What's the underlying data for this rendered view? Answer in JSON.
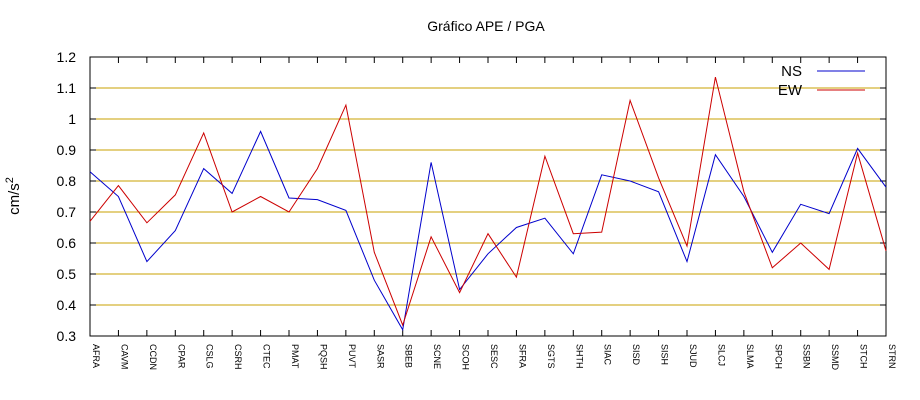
{
  "chart_data": {
    "type": "line",
    "title": "Gráfico  APE / PGA",
    "xlabel": "",
    "ylabel": "cm/s",
    "ylabel_exponent": "2",
    "ylim": [
      0.3,
      1.2
    ],
    "yticks": [
      "0.3",
      "0.4",
      "0.5",
      "0.6",
      "0.7",
      "0.8",
      "0.9",
      "1",
      "1.1",
      "1.2"
    ],
    "grid": "horizontal",
    "legend_position": "top-right",
    "categories": [
      "AFRA",
      "CAVM",
      "CCDN",
      "CPAR",
      "CSLG",
      "CSRH",
      "CTEC",
      "PMAT",
      "PQSH",
      "PUVT",
      "SASR",
      "SBEB",
      "SCNE",
      "SCOH",
      "SESC",
      "SFRA",
      "SGTS",
      "SHTH",
      "SIAC",
      "SISD",
      "SISH",
      "SJUD",
      "SLCJ",
      "SLMA",
      "SPCH",
      "SSBN",
      "SSMD",
      "STCH",
      "STRN"
    ],
    "series": [
      {
        "name": "NS",
        "color": "#0000cc",
        "values": [
          0.83,
          0.75,
          0.54,
          0.64,
          0.84,
          0.76,
          0.96,
          0.745,
          0.74,
          0.705,
          0.48,
          0.32,
          0.86,
          0.45,
          0.565,
          0.65,
          0.68,
          0.565,
          0.82,
          0.8,
          0.765,
          0.54,
          0.885,
          0.75,
          0.57,
          0.725,
          0.695,
          0.905,
          0.78
        ]
      },
      {
        "name": "EW",
        "color": "#cc0000",
        "values": [
          0.67,
          0.785,
          0.665,
          0.755,
          0.955,
          0.7,
          0.75,
          0.7,
          0.84,
          1.045,
          0.57,
          0.335,
          0.62,
          0.44,
          0.63,
          0.49,
          0.88,
          0.63,
          0.635,
          1.06,
          0.81,
          0.59,
          1.135,
          0.765,
          0.52,
          0.6,
          0.515,
          0.89,
          0.575
        ]
      }
    ]
  }
}
